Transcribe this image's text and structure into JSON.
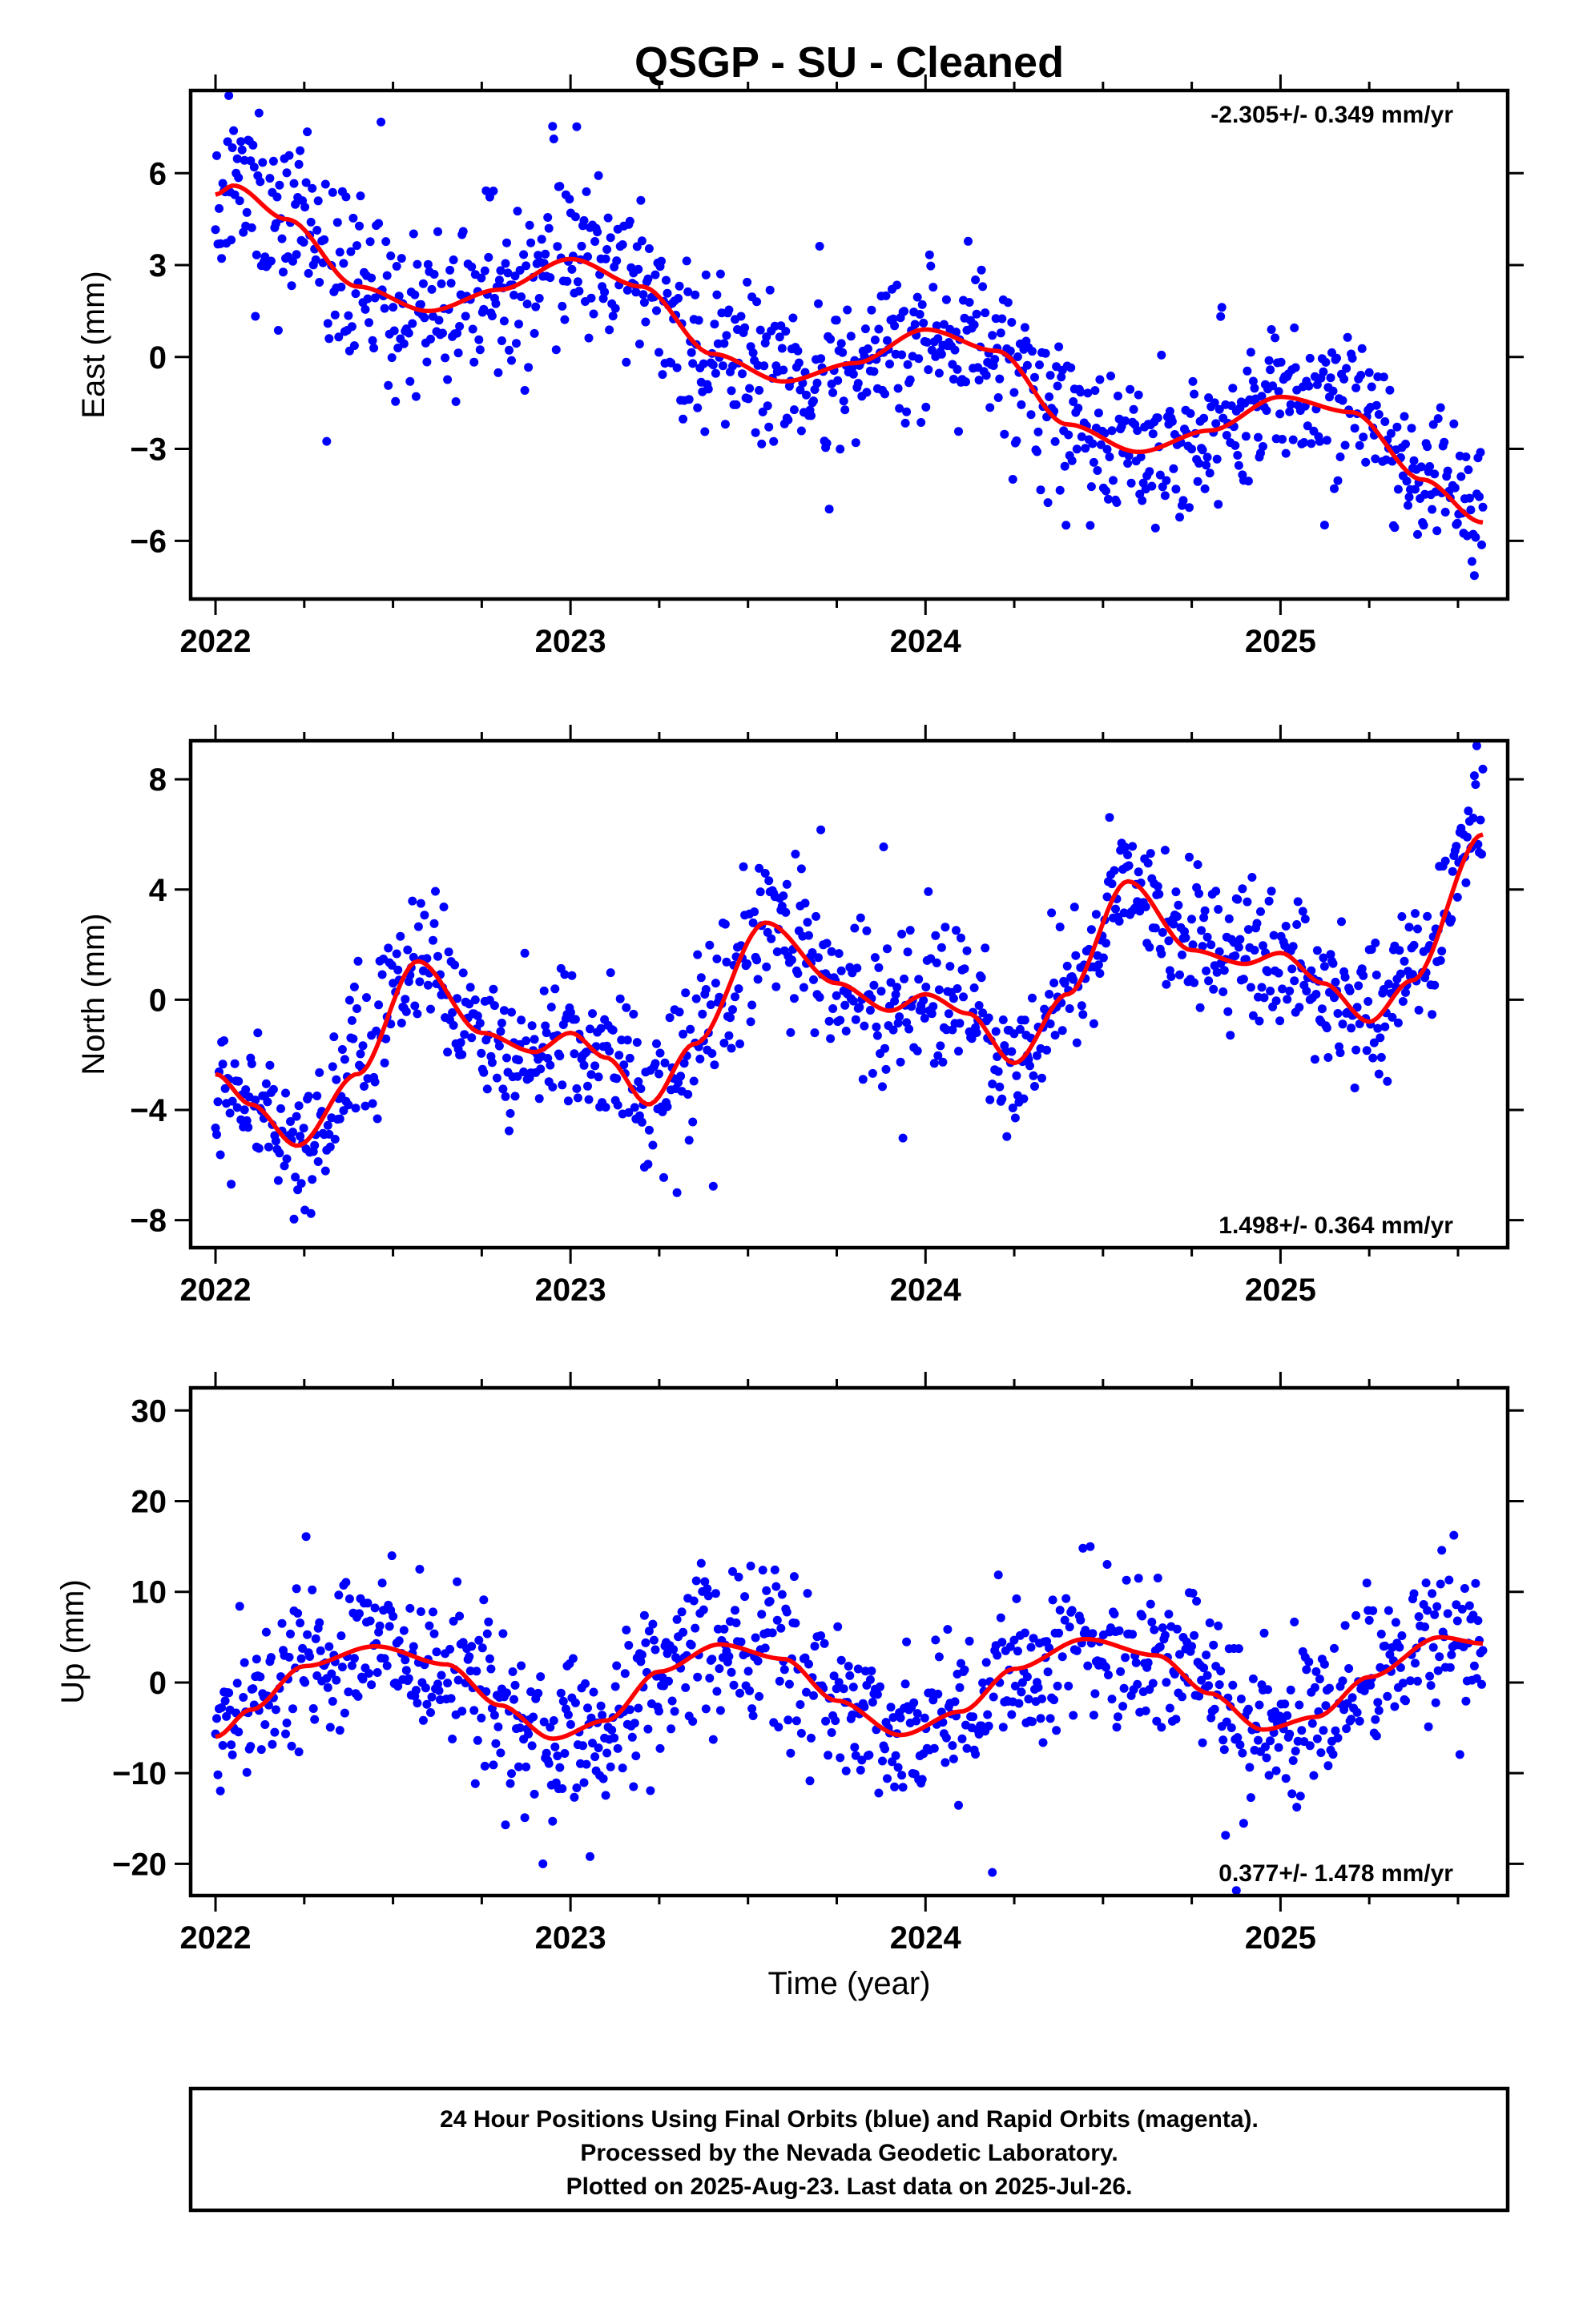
{
  "title": "QSGP  - SU - Cleaned",
  "x_axis_label": "Time (year)",
  "footer": {
    "line1": "24 Hour Positions Using Final Orbits (blue) and Rapid Orbits (magenta).",
    "line2": "Processed by the Nevada Geodetic Laboratory.",
    "line3": "Plotted on 2025-Aug-23. Last data on 2025-Jul-26."
  },
  "colors": {
    "final_orbits": "#0000ff",
    "rapid_orbits": "#ff00ff",
    "fit": "#ff0000"
  },
  "chart_data": [
    {
      "type": "scatter",
      "name": "east",
      "ylabel": "East (mm)",
      "rate_label": "-2.305+/- 0.349 mm/yr",
      "rate_position": "top-right",
      "xlim": [
        2021.93,
        2025.64
      ],
      "ylim": [
        -7.9,
        8.7
      ],
      "xticks": [
        2022,
        2023,
        2024,
        2025
      ],
      "yticks": [
        -6,
        -3,
        0,
        3,
        6
      ],
      "ytick_labels": [
        "−6",
        "−3",
        "0",
        "3",
        "6"
      ],
      "fit_curve": {
        "x": [
          2022.0,
          2022.05,
          2022.2,
          2022.4,
          2022.6,
          2022.8,
          2023.0,
          2023.2,
          2023.4,
          2023.6,
          2023.8,
          2024.0,
          2024.2,
          2024.4,
          2024.6,
          2024.8,
          2025.0,
          2025.2,
          2025.4,
          2025.57
        ],
        "y": [
          5.3,
          5.6,
          4.5,
          2.3,
          1.5,
          2.2,
          3.2,
          2.3,
          0.1,
          -0.8,
          -0.2,
          0.9,
          0.2,
          -2.2,
          -3.1,
          -2.4,
          -1.3,
          -1.8,
          -4.0,
          -5.4
        ]
      },
      "scatter": {
        "n": 1050,
        "noise": 1.3,
        "outlier_rate": 0.02,
        "seed": 11
      },
      "series": [
        {
          "name": "Final Orbits",
          "color": "#0000ff"
        }
      ]
    },
    {
      "type": "scatter",
      "name": "north",
      "ylabel": "North (mm)",
      "rate_label": "1.498+/- 0.364 mm/yr",
      "rate_position": "bottom-right",
      "xlim": [
        2021.93,
        2025.64
      ],
      "ylim": [
        -9.0,
        9.4
      ],
      "xticks": [
        2022,
        2023,
        2024,
        2025
      ],
      "yticks": [
        -8,
        -4,
        0,
        4,
        8
      ],
      "ytick_labels": [
        "−8",
        "−4",
        "0",
        "4",
        "8"
      ],
      "fit_curve": {
        "x": [
          2022.0,
          2022.1,
          2022.23,
          2022.4,
          2022.57,
          2022.75,
          2022.9,
          2023.0,
          2023.1,
          2023.22,
          2023.35,
          2023.55,
          2023.75,
          2023.9,
          2024.0,
          2024.12,
          2024.25,
          2024.4,
          2024.57,
          2024.75,
          2024.9,
          2025.0,
          2025.12,
          2025.25,
          2025.37,
          2025.57
        ],
        "y": [
          -2.7,
          -3.8,
          -5.3,
          -2.7,
          1.4,
          -1.2,
          -1.9,
          -1.2,
          -2.1,
          -3.8,
          -1.6,
          2.8,
          0.6,
          -0.4,
          0.2,
          -0.5,
          -2.3,
          0.2,
          4.3,
          1.8,
          1.3,
          1.7,
          0.6,
          -0.8,
          0.7,
          6.0
        ]
      },
      "scatter": {
        "n": 1050,
        "noise": 1.25,
        "outlier_rate": 0.02,
        "seed": 23
      },
      "series": [
        {
          "name": "Final Orbits",
          "color": "#0000ff"
        }
      ]
    },
    {
      "type": "scatter",
      "name": "up",
      "ylabel": "Up (mm)",
      "rate_label": "0.377+/- 1.478 mm/yr",
      "rate_position": "bottom-right",
      "xlim": [
        2021.93,
        2025.64
      ],
      "ylim": [
        -23.5,
        32.5
      ],
      "xticks": [
        2022,
        2023,
        2024,
        2025
      ],
      "yticks": [
        -20,
        -10,
        0,
        10,
        20,
        30
      ],
      "ytick_labels": [
        "−20",
        "−10",
        "0",
        "10",
        "20",
        "30"
      ],
      "fit_curve": {
        "x": [
          2022.0,
          2022.1,
          2022.25,
          2022.45,
          2022.65,
          2022.8,
          2022.95,
          2023.1,
          2023.25,
          2023.42,
          2023.6,
          2023.75,
          2023.93,
          2024.1,
          2024.25,
          2024.45,
          2024.65,
          2024.8,
          2024.95,
          2025.1,
          2025.25,
          2025.45,
          2025.57
        ],
        "y": [
          -6.0,
          -3.0,
          1.8,
          4.0,
          2.0,
          -2.5,
          -6.2,
          -4.2,
          1.2,
          4.2,
          2.6,
          -2.0,
          -5.8,
          -3.2,
          1.5,
          4.8,
          3.0,
          -1.2,
          -5.2,
          -3.8,
          0.6,
          5.0,
          4.3
        ]
      },
      "scatter": {
        "n": 1050,
        "noise": 4.4,
        "outlier_rate": 0.02,
        "seed": 37
      },
      "series": [
        {
          "name": "Final Orbits",
          "color": "#0000ff"
        }
      ]
    }
  ]
}
